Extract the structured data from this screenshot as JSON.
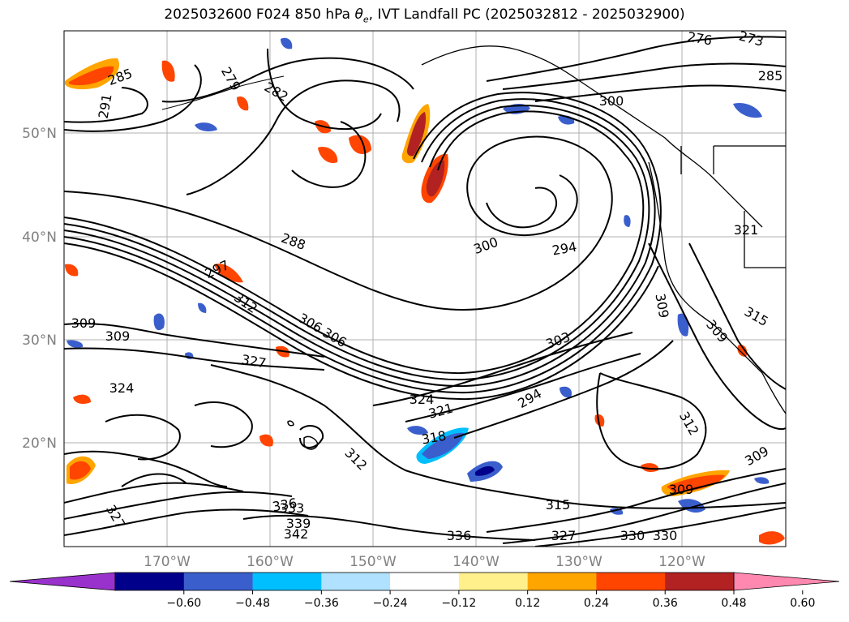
{
  "title_prefix": "2025032600 F024 850 hPa ",
  "title_symbol": "θ",
  "title_subscript": "e",
  "title_suffix": ", IVT Landfall PC (2025032812 - 2025032900)",
  "map": {
    "lat_ticks": [
      "50°N",
      "40°N",
      "30°N",
      "20°N"
    ],
    "lon_ticks": [
      "170°W",
      "160°W",
      "150°W",
      "140°W",
      "130°W",
      "120°W"
    ],
    "contour_labels": [
      "285",
      "279",
      "282",
      "291",
      "288",
      "297",
      "312",
      "306",
      "309",
      "306",
      "309",
      "327",
      "324",
      "318",
      "321",
      "312",
      "294",
      "300",
      "294",
      "303",
      "309",
      "315",
      "309",
      "312",
      "309",
      "321",
      "276",
      "273",
      "285",
      "300",
      "324",
      "327",
      "336",
      "333",
      "339",
      "342",
      "315",
      "327",
      "330",
      "336",
      "330",
      "309"
    ]
  },
  "colorbar": {
    "tick_labels": [
      "−0.60",
      "−0.48",
      "−0.36",
      "−0.24",
      "−0.12",
      "0.12",
      "0.24",
      "0.36",
      "0.48",
      "0.60"
    ],
    "colors": [
      "#9932cc",
      "#00008b",
      "#3a5fcd",
      "#00bfff",
      "#b0e2ff",
      "#ffffff",
      "#fff08b",
      "#ffa500",
      "#ff4500",
      "#b22222",
      "#ff88b0"
    ]
  },
  "colors": {
    "contour": "#000000",
    "grid": "#b0b0b0",
    "coast": "#000000"
  }
}
